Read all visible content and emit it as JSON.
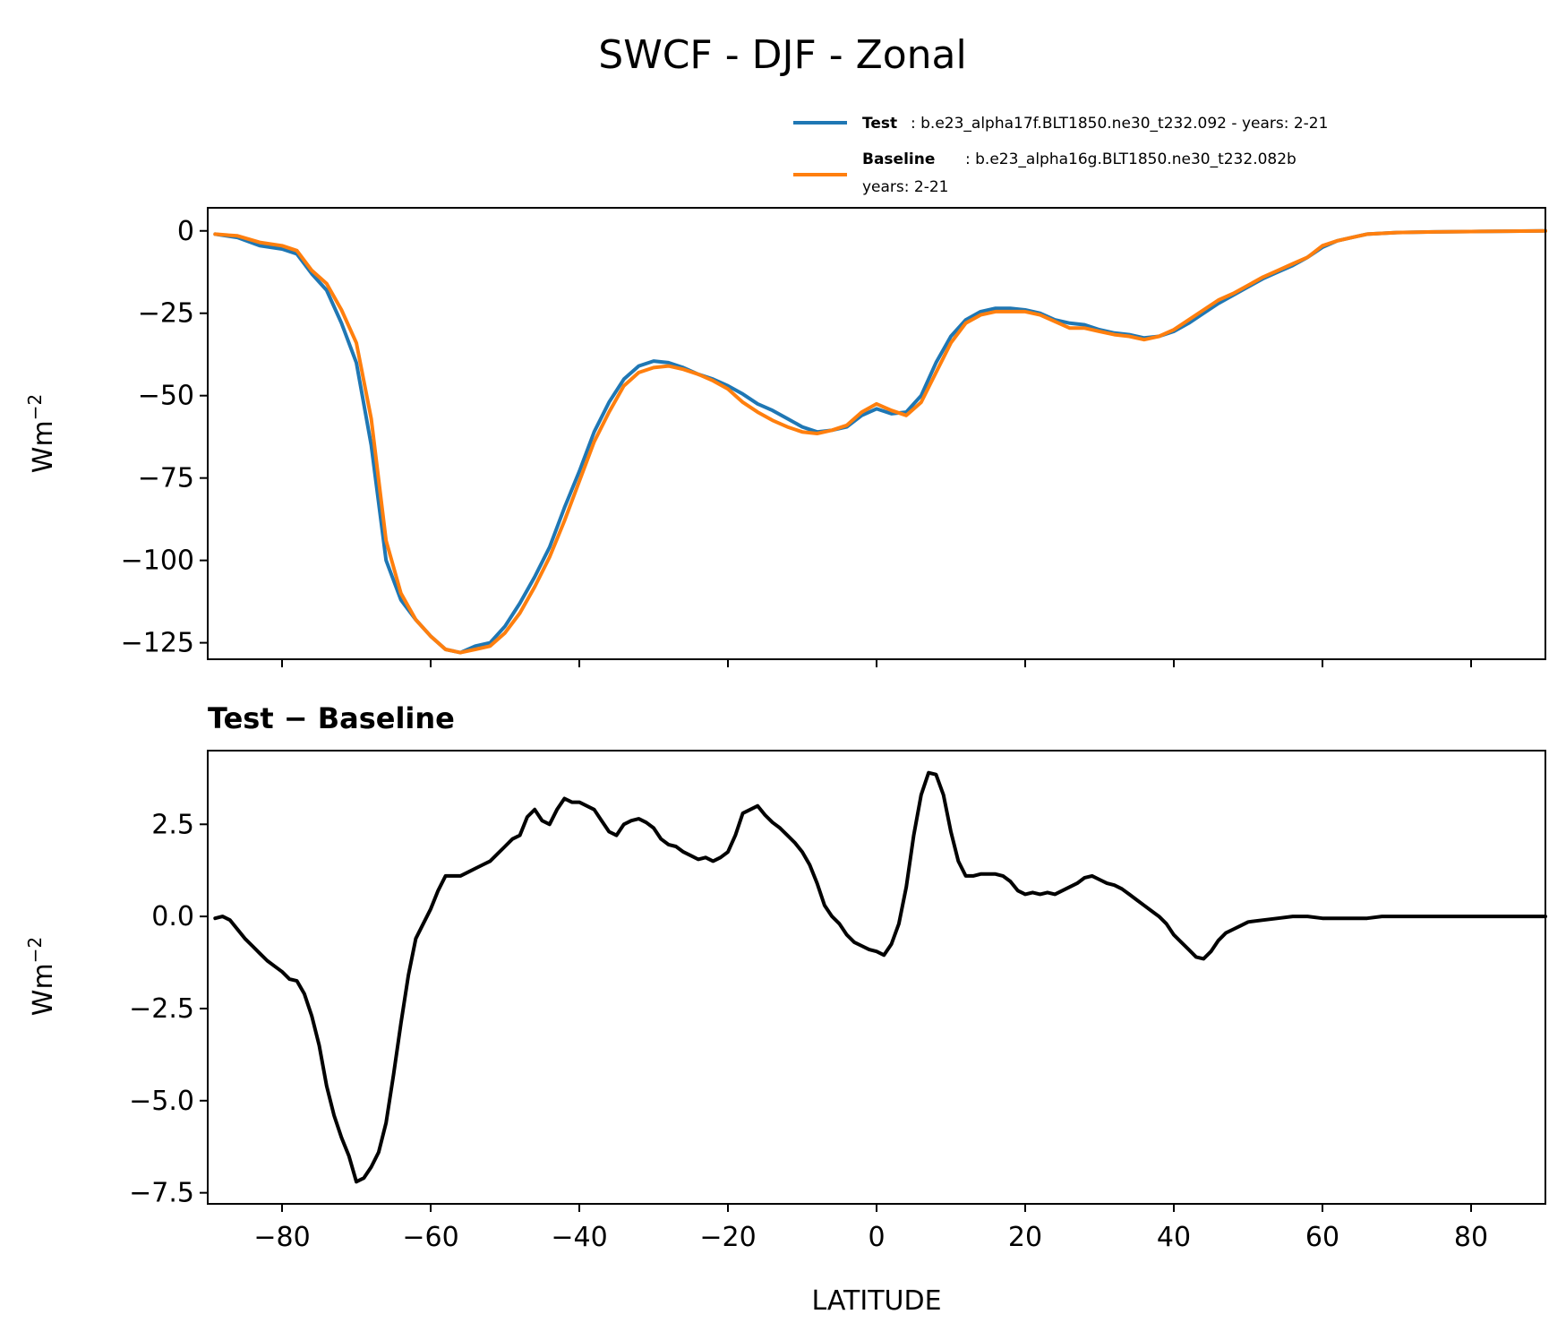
{
  "chart_data": [
    {
      "type": "line",
      "title": "SWCF - DJF - Zonal",
      "xlabel": "",
      "ylabel": "Wm",
      "ylabel_sup": "−2",
      "xlim": [
        -90,
        90
      ],
      "ylim": [
        -130,
        7
      ],
      "yticks": [
        0,
        -25,
        -50,
        -75,
        -100,
        -125
      ],
      "ytick_labels": [
        "0",
        "−25",
        "−50",
        "−75",
        "−100",
        "−125"
      ],
      "xticks": [
        -80,
        -60,
        -40,
        -20,
        0,
        20,
        40,
        60,
        80
      ],
      "legend": [
        {
          "name": "Test",
          "text": ": b.e23_alpha17f.BLT1850.ne30_t232.092 - years: 2-21",
          "color": "#1f77b4"
        },
        {
          "name": "Baseline",
          "text": ": b.e23_alpha16g.BLT1850.ne30_t232.082b",
          "text2": "years: 2-21",
          "color": "#ff7f0e"
        }
      ],
      "series": [
        {
          "name": "Test",
          "color": "#1f77b4",
          "x": [
            -89,
            -86,
            -83,
            -80,
            -78,
            -76,
            -74,
            -72,
            -70,
            -68,
            -66,
            -64,
            -62,
            -60,
            -58,
            -56,
            -54,
            -52,
            -50,
            -48,
            -46,
            -44,
            -42,
            -40,
            -38,
            -36,
            -34,
            -32,
            -30,
            -28,
            -26,
            -24,
            -22,
            -20,
            -18,
            -16,
            -14,
            -12,
            -10,
            -8,
            -6,
            -4,
            -2,
            0,
            2,
            4,
            6,
            8,
            10,
            12,
            14,
            16,
            18,
            20,
            22,
            24,
            26,
            28,
            30,
            32,
            34,
            36,
            38,
            40,
            42,
            44,
            46,
            48,
            50,
            52,
            54,
            56,
            58,
            60,
            62,
            64,
            66,
            70,
            75,
            80,
            85,
            90
          ],
          "values": [
            -1,
            -2,
            -4.5,
            -5.5,
            -7,
            -13,
            -18,
            -28,
            -40,
            -65,
            -100,
            -112,
            -118,
            -123,
            -127,
            -128,
            -126,
            -125,
            -120,
            -113,
            -105,
            -96,
            -84,
            -73,
            -61,
            -52,
            -45,
            -41,
            -39.5,
            -40,
            -41.5,
            -43.5,
            -45,
            -47,
            -49.5,
            -52.5,
            -54.5,
            -57,
            -59.5,
            -61,
            -60.5,
            -59.5,
            -56,
            -54,
            -55.5,
            -55,
            -50,
            -40,
            -32,
            -27,
            -24.5,
            -23.5,
            -23.5,
            -24,
            -25,
            -27,
            -28,
            -28.5,
            -30,
            -31,
            -31.5,
            -32.5,
            -32,
            -30.5,
            -28,
            -25,
            -22,
            -19.5,
            -17,
            -14.5,
            -12.5,
            -10.5,
            -8,
            -5,
            -3,
            -2,
            -1,
            -0.5,
            -0.3,
            -0.2,
            -0.1,
            0
          ]
        },
        {
          "name": "Baseline",
          "color": "#ff7f0e",
          "x": [
            -89,
            -86,
            -83,
            -80,
            -78,
            -76,
            -74,
            -72,
            -70,
            -68,
            -66,
            -64,
            -62,
            -60,
            -58,
            -56,
            -54,
            -52,
            -50,
            -48,
            -46,
            -44,
            -42,
            -40,
            -38,
            -36,
            -34,
            -32,
            -30,
            -28,
            -26,
            -24,
            -22,
            -20,
            -18,
            -16,
            -14,
            -12,
            -10,
            -8,
            -6,
            -4,
            -2,
            0,
            2,
            4,
            6,
            8,
            10,
            12,
            14,
            16,
            18,
            20,
            22,
            24,
            26,
            28,
            30,
            32,
            34,
            36,
            38,
            40,
            42,
            44,
            46,
            48,
            50,
            52,
            54,
            56,
            58,
            60,
            62,
            64,
            66,
            70,
            75,
            80,
            85,
            90
          ],
          "values": [
            -1,
            -1.5,
            -3.5,
            -4.5,
            -6,
            -12,
            -16,
            -24,
            -34,
            -57,
            -94,
            -110,
            -118,
            -123,
            -127,
            -128,
            -127,
            -126,
            -122,
            -116,
            -108,
            -99,
            -88,
            -76,
            -64,
            -55,
            -47,
            -43,
            -41.5,
            -41,
            -42,
            -43.5,
            -45.5,
            -48,
            -52,
            -55,
            -57.5,
            -59.5,
            -61,
            -61.5,
            -60.5,
            -59,
            -55,
            -52.5,
            -54.5,
            -56,
            -52,
            -43,
            -34,
            -28,
            -25.5,
            -24.5,
            -24.5,
            -24.5,
            -25.5,
            -27.5,
            -29.5,
            -29.5,
            -30.5,
            -31.5,
            -32,
            -33,
            -32,
            -30,
            -27,
            -24,
            -21,
            -19,
            -16.5,
            -14,
            -12,
            -10,
            -8,
            -4.5,
            -3,
            -2,
            -1,
            -0.5,
            -0.3,
            -0.2,
            -0.1,
            0
          ]
        }
      ]
    },
    {
      "type": "line",
      "title": "Test − Baseline",
      "xlabel": "LATITUDE",
      "ylabel": "Wm",
      "ylabel_sup": "−2",
      "xlim": [
        -90,
        90
      ],
      "ylim": [
        -7.8,
        4.5
      ],
      "yticks": [
        2.5,
        0.0,
        -2.5,
        -5.0,
        -7.5
      ],
      "ytick_labels": [
        "2.5",
        "0.0",
        "−2.5",
        "−5.0",
        "−7.5"
      ],
      "xticks": [
        -80,
        -60,
        -40,
        -20,
        0,
        20,
        40,
        60,
        80
      ],
      "xtick_labels": [
        "−80",
        "−60",
        "−40",
        "−20",
        "0",
        "20",
        "40",
        "60",
        "80"
      ],
      "series": [
        {
          "name": "Test − Baseline",
          "color": "#000000",
          "x": [
            -89,
            -88,
            -87,
            -86,
            -85,
            -84,
            -83,
            -82,
            -81,
            -80,
            -79,
            -78,
            -77,
            -76,
            -75,
            -74,
            -73,
            -72,
            -71,
            -70,
            -69,
            -68,
            -67,
            -66,
            -65,
            -64,
            -63,
            -62,
            -61,
            -60,
            -59,
            -58,
            -57,
            -56,
            -55,
            -54,
            -53,
            -52,
            -51,
            -50,
            -49,
            -48,
            -47,
            -46,
            -45,
            -44,
            -43,
            -42,
            -41,
            -40,
            -39,
            -38,
            -37,
            -36,
            -35,
            -34,
            -33,
            -32,
            -31,
            -30,
            -29,
            -28,
            -27,
            -26,
            -25,
            -24,
            -23,
            -22,
            -21,
            -20,
            -19,
            -18,
            -17,
            -16,
            -15,
            -14,
            -13,
            -12,
            -11,
            -10,
            -9,
            -8,
            -7,
            -6,
            -5,
            -4,
            -3,
            -2,
            -1,
            0,
            1,
            2,
            3,
            4,
            5,
            6,
            7,
            8,
            9,
            10,
            11,
            12,
            13,
            14,
            15,
            16,
            17,
            18,
            19,
            20,
            21,
            22,
            23,
            24,
            25,
            26,
            27,
            28,
            29,
            30,
            31,
            32,
            33,
            34,
            35,
            36,
            37,
            38,
            39,
            40,
            41,
            42,
            43,
            44,
            45,
            46,
            47,
            48,
            49,
            50,
            52,
            54,
            56,
            58,
            60,
            62,
            64,
            66,
            68,
            70,
            75,
            80,
            85,
            90
          ],
          "values": [
            -0.05,
            0.0,
            -0.1,
            -0.35,
            -0.6,
            -0.8,
            -1.0,
            -1.2,
            -1.35,
            -1.5,
            -1.7,
            -1.75,
            -2.1,
            -2.7,
            -3.5,
            -4.6,
            -5.4,
            -6.0,
            -6.5,
            -7.2,
            -7.1,
            -6.8,
            -6.4,
            -5.6,
            -4.3,
            -2.9,
            -1.6,
            -0.6,
            -0.2,
            0.2,
            0.7,
            1.1,
            1.1,
            1.1,
            1.2,
            1.3,
            1.4,
            1.5,
            1.7,
            1.9,
            2.1,
            2.2,
            2.7,
            2.9,
            2.6,
            2.5,
            2.9,
            3.2,
            3.1,
            3.1,
            3.0,
            2.9,
            2.6,
            2.3,
            2.2,
            2.5,
            2.6,
            2.65,
            2.55,
            2.4,
            2.1,
            1.95,
            1.9,
            1.75,
            1.65,
            1.55,
            1.6,
            1.5,
            1.6,
            1.75,
            2.2,
            2.8,
            2.9,
            3.0,
            2.75,
            2.55,
            2.4,
            2.2,
            2.0,
            1.75,
            1.4,
            0.9,
            0.3,
            0.0,
            -0.2,
            -0.5,
            -0.7,
            -0.8,
            -0.9,
            -0.95,
            -1.05,
            -0.75,
            -0.2,
            0.8,
            2.2,
            3.3,
            3.9,
            3.85,
            3.3,
            2.3,
            1.5,
            1.1,
            1.1,
            1.15,
            1.15,
            1.15,
            1.1,
            0.95,
            0.7,
            0.6,
            0.65,
            0.6,
            0.65,
            0.6,
            0.7,
            0.8,
            0.9,
            1.05,
            1.1,
            1.0,
            0.9,
            0.85,
            0.75,
            0.6,
            0.45,
            0.3,
            0.15,
            0.0,
            -0.2,
            -0.5,
            -0.7,
            -0.9,
            -1.1,
            -1.15,
            -0.95,
            -0.65,
            -0.45,
            -0.35,
            -0.25,
            -0.15,
            -0.1,
            -0.05,
            0.0,
            0.0,
            -0.05,
            -0.05,
            -0.05,
            -0.05,
            0.0,
            0.0,
            0.0,
            0.0,
            0.0,
            0.0
          ]
        }
      ]
    }
  ]
}
